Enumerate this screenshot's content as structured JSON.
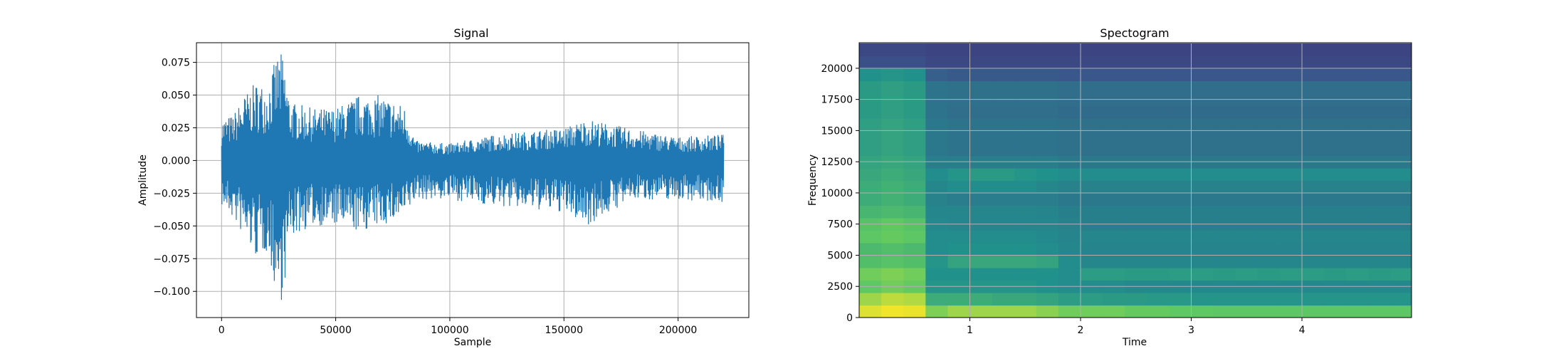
{
  "chart_data": [
    {
      "type": "line",
      "title": "Signal",
      "xlabel": "Sample",
      "ylabel": "Amplitude",
      "xlim": [
        -11000,
        231000
      ],
      "ylim": [
        -0.12,
        0.09
      ],
      "xticks": [
        0,
        50000,
        100000,
        150000,
        200000
      ],
      "xtick_labels": [
        "0",
        "50000",
        "100000",
        "150000",
        "200000"
      ],
      "yticks": [
        -0.1,
        -0.075,
        -0.05,
        -0.025,
        0.0,
        0.025,
        0.05,
        0.075
      ],
      "ytick_labels": [
        "−0.100",
        "−0.075",
        "−0.050",
        "−0.025",
        "0.000",
        "0.025",
        "0.050",
        "0.075"
      ],
      "grid": true,
      "color": "#1f77b4",
      "series": [
        {
          "x": [
            0,
            5000,
            10000,
            15000,
            20000,
            25000,
            27000,
            30000,
            40000,
            50000,
            60000,
            70000,
            80000,
            85000,
            100000,
            120000,
            150000,
            160000,
            180000,
            200000,
            220000
          ],
          "y_max": [
            0.032,
            0.035,
            0.05,
            0.06,
            0.058,
            0.084,
            0.08,
            0.045,
            0.04,
            0.04,
            0.05,
            0.05,
            0.042,
            0.015,
            0.013,
            0.02,
            0.025,
            0.032,
            0.024,
            0.018,
            0.02
          ],
          "y_min": [
            -0.035,
            -0.045,
            -0.06,
            -0.075,
            -0.07,
            -0.11,
            -0.105,
            -0.06,
            -0.05,
            -0.05,
            -0.055,
            -0.05,
            -0.045,
            -0.03,
            -0.03,
            -0.035,
            -0.04,
            -0.05,
            -0.03,
            -0.03,
            -0.032
          ]
        }
      ]
    },
    {
      "type": "heatmap",
      "title": "Spectogram",
      "xlabel": "Time",
      "ylabel": "Frequency",
      "xlim": [
        0.0,
        4.99
      ],
      "ylim": [
        0,
        22050
      ],
      "xticks": [
        1,
        2,
        3,
        4
      ],
      "xtick_labels": [
        "1",
        "2",
        "3",
        "4"
      ],
      "yticks": [
        0,
        2500,
        5000,
        7500,
        10000,
        12500,
        15000,
        17500,
        20000
      ],
      "ytick_labels": [
        "0",
        "2500",
        "5000",
        "7500",
        "10000",
        "12500",
        "15000",
        "17500",
        "20000"
      ],
      "grid": true,
      "colormap": "viridis",
      "time_bins": [
        0.1,
        0.3,
        0.5,
        0.7,
        0.9,
        1.1,
        1.3,
        1.5,
        1.7,
        1.9,
        2.1,
        2.3,
        2.5,
        2.7,
        2.9,
        3.1,
        3.3,
        3.5,
        3.7,
        3.9,
        4.1,
        4.3,
        4.5,
        4.7,
        4.9
      ],
      "freq_bins": [
        500,
        1500,
        2500,
        3500,
        4500,
        5500,
        6500,
        7500,
        8500,
        9500,
        10500,
        11500,
        12500,
        13500,
        14500,
        15500,
        16500,
        17500,
        18500,
        19500,
        20500,
        21500
      ],
      "intensity_db": [
        [
          0.95,
          0.98,
          0.97,
          0.8,
          0.85,
          0.85,
          0.85,
          0.85,
          0.82,
          0.78,
          0.78,
          0.78,
          0.76,
          0.76,
          0.75,
          0.75,
          0.74,
          0.74,
          0.74,
          0.74,
          0.74,
          0.74,
          0.74,
          0.74,
          0.74
        ],
        [
          0.85,
          0.9,
          0.88,
          0.62,
          0.62,
          0.62,
          0.6,
          0.6,
          0.58,
          0.55,
          0.55,
          0.54,
          0.54,
          0.53,
          0.53,
          0.52,
          0.52,
          0.52,
          0.52,
          0.52,
          0.52,
          0.52,
          0.52,
          0.52,
          0.52
        ],
        [
          0.75,
          0.78,
          0.76,
          0.52,
          0.52,
          0.52,
          0.52,
          0.52,
          0.5,
          0.48,
          0.48,
          0.48,
          0.47,
          0.47,
          0.47,
          0.47,
          0.47,
          0.47,
          0.47,
          0.47,
          0.47,
          0.47,
          0.47,
          0.47,
          0.47
        ],
        [
          0.78,
          0.8,
          0.78,
          0.5,
          0.5,
          0.5,
          0.5,
          0.5,
          0.5,
          0.48,
          0.55,
          0.55,
          0.54,
          0.54,
          0.55,
          0.55,
          0.54,
          0.55,
          0.54,
          0.55,
          0.55,
          0.54,
          0.55,
          0.54,
          0.55
        ],
        [
          0.7,
          0.72,
          0.7,
          0.52,
          0.58,
          0.6,
          0.6,
          0.6,
          0.58,
          0.48,
          0.46,
          0.46,
          0.46,
          0.46,
          0.46,
          0.46,
          0.46,
          0.46,
          0.46,
          0.46,
          0.46,
          0.46,
          0.46,
          0.46,
          0.46
        ],
        [
          0.68,
          0.7,
          0.68,
          0.48,
          0.5,
          0.5,
          0.5,
          0.5,
          0.48,
          0.46,
          0.45,
          0.45,
          0.45,
          0.45,
          0.45,
          0.45,
          0.45,
          0.45,
          0.45,
          0.45,
          0.45,
          0.45,
          0.45,
          0.45,
          0.45
        ],
        [
          0.74,
          0.76,
          0.74,
          0.48,
          0.48,
          0.48,
          0.48,
          0.48,
          0.47,
          0.45,
          0.46,
          0.46,
          0.46,
          0.46,
          0.46,
          0.46,
          0.46,
          0.46,
          0.46,
          0.46,
          0.46,
          0.46,
          0.46,
          0.46,
          0.46
        ],
        [
          0.72,
          0.75,
          0.72,
          0.47,
          0.46,
          0.46,
          0.46,
          0.46,
          0.46,
          0.44,
          0.43,
          0.43,
          0.43,
          0.43,
          0.43,
          0.43,
          0.43,
          0.43,
          0.43,
          0.43,
          0.43,
          0.43,
          0.43,
          0.43,
          0.43
        ],
        [
          0.66,
          0.68,
          0.66,
          0.46,
          0.46,
          0.46,
          0.46,
          0.46,
          0.45,
          0.43,
          0.43,
          0.43,
          0.43,
          0.43,
          0.43,
          0.43,
          0.43,
          0.43,
          0.43,
          0.43,
          0.43,
          0.43,
          0.43,
          0.43,
          0.43
        ],
        [
          0.62,
          0.64,
          0.62,
          0.44,
          0.42,
          0.42,
          0.42,
          0.42,
          0.42,
          0.4,
          0.4,
          0.4,
          0.4,
          0.4,
          0.4,
          0.4,
          0.4,
          0.4,
          0.4,
          0.4,
          0.4,
          0.4,
          0.4,
          0.4,
          0.4
        ],
        [
          0.62,
          0.64,
          0.62,
          0.46,
          0.48,
          0.48,
          0.48,
          0.48,
          0.46,
          0.44,
          0.44,
          0.44,
          0.44,
          0.44,
          0.44,
          0.44,
          0.44,
          0.44,
          0.44,
          0.44,
          0.44,
          0.44,
          0.44,
          0.44,
          0.44
        ],
        [
          0.6,
          0.62,
          0.6,
          0.48,
          0.52,
          0.54,
          0.54,
          0.52,
          0.5,
          0.48,
          0.48,
          0.48,
          0.48,
          0.48,
          0.48,
          0.48,
          0.48,
          0.48,
          0.48,
          0.48,
          0.48,
          0.48,
          0.48,
          0.48,
          0.48
        ],
        [
          0.58,
          0.6,
          0.58,
          0.42,
          0.42,
          0.42,
          0.42,
          0.42,
          0.42,
          0.4,
          0.4,
          0.4,
          0.4,
          0.4,
          0.4,
          0.4,
          0.4,
          0.4,
          0.4,
          0.4,
          0.4,
          0.4,
          0.4,
          0.4,
          0.4
        ],
        [
          0.56,
          0.58,
          0.56,
          0.4,
          0.38,
          0.38,
          0.38,
          0.38,
          0.38,
          0.37,
          0.37,
          0.37,
          0.37,
          0.37,
          0.37,
          0.37,
          0.37,
          0.37,
          0.37,
          0.37,
          0.37,
          0.37,
          0.37,
          0.37,
          0.37
        ],
        [
          0.56,
          0.58,
          0.56,
          0.4,
          0.38,
          0.38,
          0.38,
          0.38,
          0.38,
          0.37,
          0.37,
          0.37,
          0.37,
          0.37,
          0.37,
          0.37,
          0.37,
          0.37,
          0.37,
          0.37,
          0.37,
          0.37,
          0.37,
          0.37,
          0.37
        ],
        [
          0.56,
          0.58,
          0.56,
          0.4,
          0.38,
          0.38,
          0.38,
          0.38,
          0.38,
          0.37,
          0.37,
          0.37,
          0.37,
          0.37,
          0.37,
          0.37,
          0.37,
          0.37,
          0.37,
          0.37,
          0.37,
          0.37,
          0.37,
          0.37,
          0.37
        ],
        [
          0.54,
          0.56,
          0.54,
          0.38,
          0.36,
          0.36,
          0.36,
          0.36,
          0.36,
          0.35,
          0.35,
          0.35,
          0.35,
          0.35,
          0.35,
          0.35,
          0.35,
          0.35,
          0.35,
          0.35,
          0.35,
          0.35,
          0.35,
          0.35,
          0.35
        ],
        [
          0.54,
          0.56,
          0.54,
          0.38,
          0.37,
          0.37,
          0.37,
          0.37,
          0.37,
          0.36,
          0.36,
          0.36,
          0.36,
          0.36,
          0.36,
          0.36,
          0.36,
          0.36,
          0.36,
          0.36,
          0.36,
          0.36,
          0.36,
          0.36,
          0.36
        ],
        [
          0.54,
          0.56,
          0.54,
          0.38,
          0.37,
          0.37,
          0.37,
          0.37,
          0.37,
          0.36,
          0.36,
          0.36,
          0.36,
          0.36,
          0.36,
          0.36,
          0.36,
          0.36,
          0.36,
          0.36,
          0.36,
          0.36,
          0.36,
          0.36,
          0.36
        ],
        [
          0.5,
          0.52,
          0.5,
          0.3,
          0.28,
          0.28,
          0.28,
          0.28,
          0.28,
          0.27,
          0.27,
          0.27,
          0.27,
          0.27,
          0.27,
          0.27,
          0.27,
          0.27,
          0.27,
          0.27,
          0.27,
          0.27,
          0.27,
          0.27,
          0.27
        ],
        [
          0.24,
          0.24,
          0.24,
          0.22,
          0.22,
          0.22,
          0.22,
          0.22,
          0.22,
          0.22,
          0.22,
          0.22,
          0.22,
          0.22,
          0.22,
          0.22,
          0.22,
          0.22,
          0.22,
          0.22,
          0.22,
          0.22,
          0.22,
          0.22,
          0.22
        ],
        [
          0.22,
          0.22,
          0.22,
          0.21,
          0.21,
          0.21,
          0.21,
          0.21,
          0.21,
          0.21,
          0.21,
          0.21,
          0.21,
          0.21,
          0.21,
          0.21,
          0.21,
          0.21,
          0.21,
          0.21,
          0.21,
          0.21,
          0.21,
          0.21,
          0.21
        ]
      ]
    }
  ]
}
